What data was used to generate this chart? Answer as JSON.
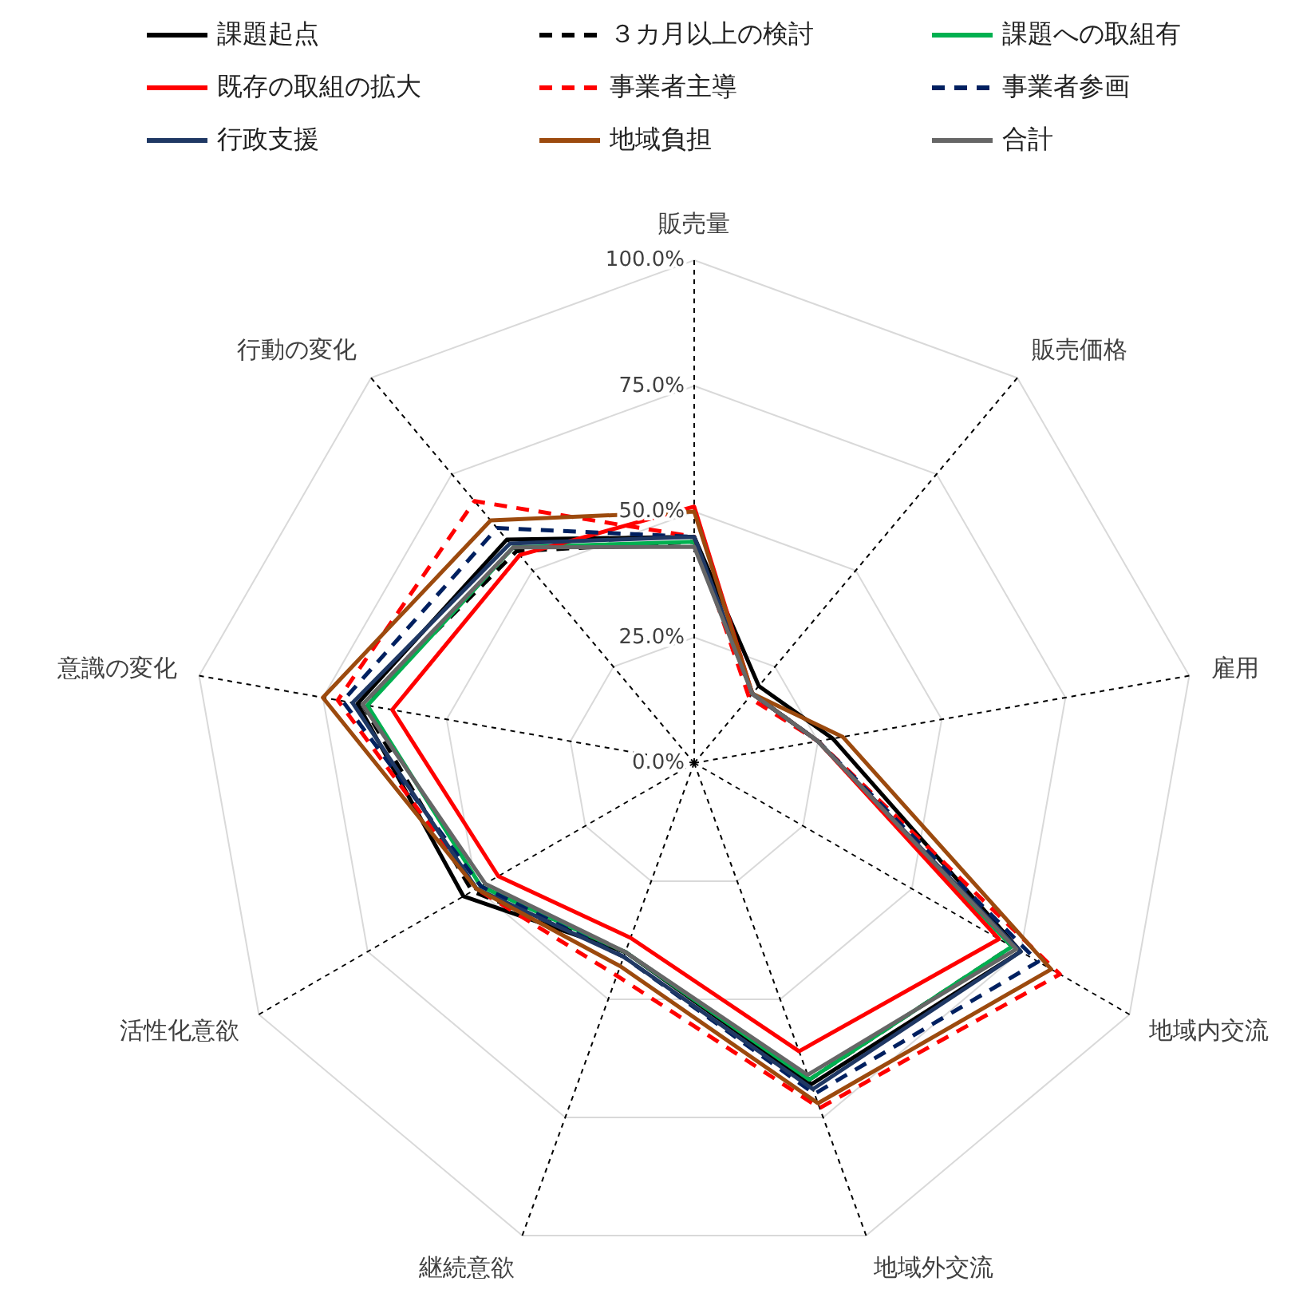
{
  "chart_data": {
    "type": "radar",
    "categories": [
      "販売量",
      "販売価格",
      "雇用",
      "地域内交流",
      "地域外交流",
      "継続意欲",
      "活性化意欲",
      "意識の変化",
      "行動の変化"
    ],
    "ylim": [
      0,
      100
    ],
    "yticks": [
      {
        "value": 0,
        "label": "0.0%"
      },
      {
        "value": 25,
        "label": "25.0%"
      },
      {
        "value": 50,
        "label": "50.0%"
      },
      {
        "value": 75,
        "label": "75.0%"
      },
      {
        "value": 100,
        "label": "100.0%"
      }
    ],
    "grid": true,
    "legend": "top",
    "marker": "none",
    "series": [
      {
        "name": "課題起点",
        "color": "#000000",
        "line_style": "solid",
        "values": [
          45,
          20,
          28,
          75,
          68,
          40,
          53,
          68,
          58
        ]
      },
      {
        "name": "３カ月以上の検討",
        "color": "#000000",
        "line_style": "dashed",
        "values": [
          44,
          18,
          25,
          73,
          67,
          40,
          51,
          67,
          55
        ]
      },
      {
        "name": "課題への取組有",
        "color": "#00b050",
        "line_style": "solid",
        "values": [
          44,
          18,
          25,
          73,
          67,
          40,
          49,
          66,
          56
        ]
      },
      {
        "name": "既存の取組の拡大",
        "color": "#ff0000",
        "line_style": "solid",
        "values": [
          51,
          18,
          25,
          70,
          61,
          37,
          45,
          61,
          54
        ]
      },
      {
        "name": "事業者主導",
        "color": "#ff0000",
        "line_style": "dashed",
        "values": [
          45,
          17,
          25,
          84,
          73,
          45,
          50,
          72,
          68
        ]
      },
      {
        "name": "事業者参画",
        "color": "#002060",
        "line_style": "dashed",
        "values": [
          45,
          18,
          25,
          79,
          70,
          41,
          49,
          71,
          61
        ]
      },
      {
        "name": "行政支援",
        "color": "#1f3864",
        "line_style": "solid",
        "values": [
          45,
          18,
          25,
          75,
          69,
          41,
          50,
          69,
          57
        ]
      },
      {
        "name": "地域負担",
        "color": "#9c4a0e",
        "line_style": "solid",
        "values": [
          50,
          18,
          30,
          82,
          72,
          43,
          50,
          75,
          63
        ]
      },
      {
        "name": "合計",
        "color": "#666666",
        "line_style": "solid",
        "values": [
          43,
          18,
          25,
          74,
          66,
          40,
          48,
          67,
          56
        ]
      }
    ]
  }
}
